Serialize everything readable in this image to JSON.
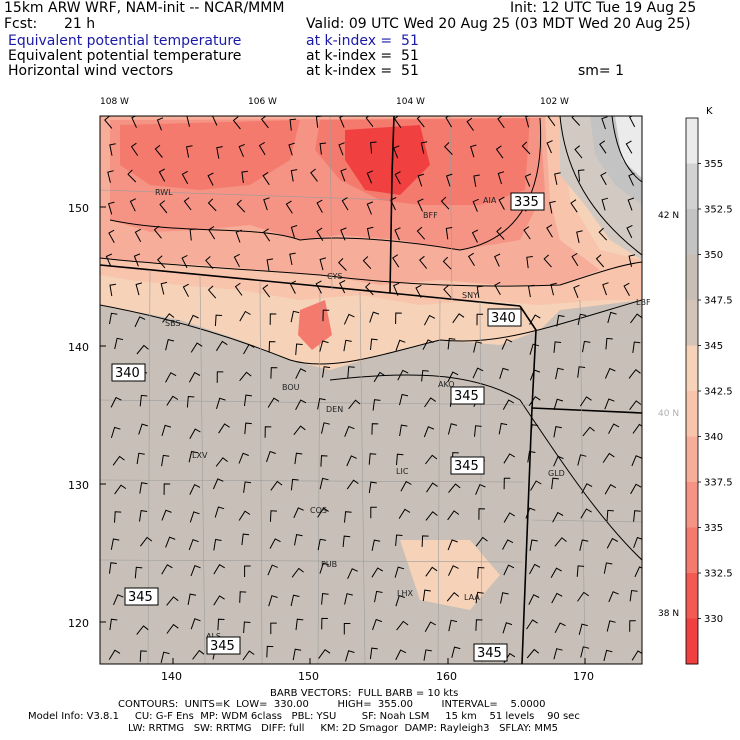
{
  "header": {
    "model": "15km ARW WRF, NAM-init -- NCAR/MMM",
    "init": "Init: 12 UTC Tue 19 Aug 25",
    "fcst_label": "Fcst:",
    "fcst_value": "21 h",
    "valid": "Valid: 09 UTC Wed 20 Aug 25 (03 MDT Wed 20 Aug 25)",
    "fields": [
      {
        "name": "Equivalent potential temperature",
        "level": "at k-index =  51"
      },
      {
        "name": "Equivalent potential temperature",
        "level": "at k-index =  51"
      },
      {
        "name": "Horizontal wind vectors",
        "level": "at k-index =  51"
      }
    ],
    "smoothing": "sm= 1"
  },
  "map": {
    "top_lon_labels": [
      "108 W",
      "106 W",
      "104 W",
      "102 W"
    ],
    "right_lat_labels": [
      "42 N",
      "40 N",
      "38 N"
    ],
    "left_y_ticks": [
      "150",
      "140",
      "130",
      "120"
    ],
    "bottom_x_ticks": [
      "140",
      "150",
      "160",
      "170"
    ],
    "stations": [
      "RWL",
      "BFF",
      "AIA",
      "CYS",
      "SNY",
      "LBF",
      "SBS",
      "BOU",
      "AKO",
      "DEN",
      "LXV",
      "LIC",
      "GLD",
      "COS",
      "PUB",
      "LHX",
      "LAA",
      "ALS"
    ],
    "contour_labels": [
      "335",
      "340",
      "340",
      "345",
      "345",
      "345",
      "345",
      "345"
    ]
  },
  "colorbar": {
    "unit": "K",
    "levels": [
      "355",
      "352.5",
      "350",
      "347.5",
      "345",
      "342.5",
      "340",
      "337.5",
      "335",
      "332.5",
      "330"
    ],
    "colors": [
      "#ebebeb",
      "#d2d2d2",
      "#c3c3c3",
      "#c8beb6",
      "#d4c4b8",
      "#f5d2b8",
      "#f8c4ac",
      "#f6ae9a",
      "#f59484",
      "#f47a6e",
      "#f25a52",
      "#f04040"
    ]
  },
  "footer": {
    "barb": "BARB VECTORS:  FULL BARB = 10 kts",
    "contours": "CONTOURS:  UNITS=K  LOW=  330.00         HIGH=  355.00         INTERVAL=    5.0000",
    "model_info_1": "Model Info: V3.8.1     CU: G-F Ens  MP: WDM 6class   PBL: YSU        SF: Noah LSM     15 km    51 levels    90 sec",
    "model_info_2": "LW: RRTMG   SW: RRTMG   DIFF: full     KM: 2D Smagor  DAMP: Rayleigh3   SFLAY: MM5"
  }
}
